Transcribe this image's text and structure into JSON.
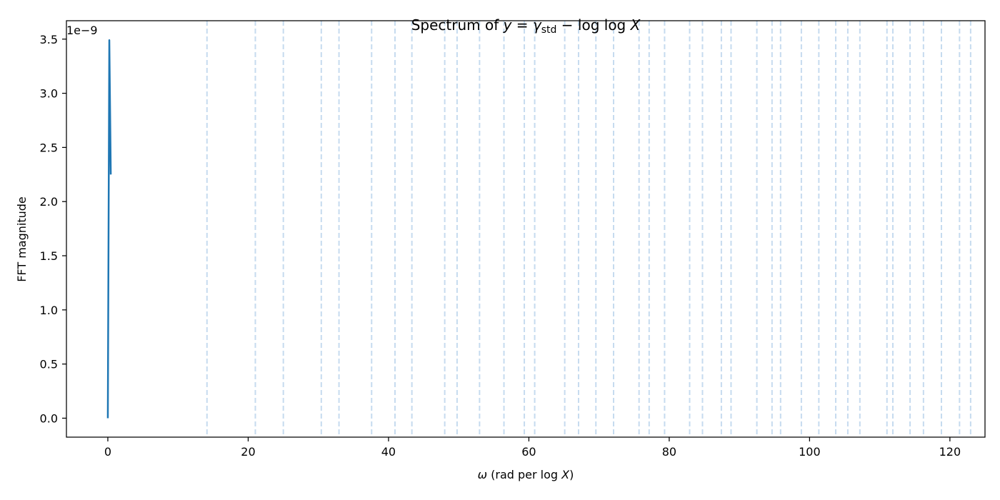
{
  "chart_data": {
    "type": "line",
    "title": "Spectrum of y = γ_std − log log X",
    "title_parts": {
      "prefix": "Spectrum of ",
      "y": "y",
      "eq": " = ",
      "gamma": "γ",
      "sub": "std",
      "minus": " − log log ",
      "X": "X"
    },
    "xlabel": "ω (rad per log X)",
    "xlabel_parts": {
      "omega": "ω",
      "mid": " (rad per log ",
      "X": "X",
      "end": ")"
    },
    "ylabel": "FFT magnitude",
    "y_offset_label": "1e−9",
    "xlim": [
      -5.9,
      125.0
    ],
    "ylim": [
      -0.175,
      3.67
    ],
    "x_ticks": [
      0,
      20,
      40,
      60,
      80,
      100,
      120
    ],
    "x_tick_labels": [
      "0",
      "20",
      "40",
      "60",
      "80",
      "100",
      "120"
    ],
    "y_ticks": [
      0.0,
      0.5,
      1.0,
      1.5,
      2.0,
      2.5,
      3.0,
      3.5
    ],
    "y_tick_labels": [
      "0.0",
      "0.5",
      "1.0",
      "1.5",
      "2.0",
      "2.5",
      "3.0",
      "3.5"
    ],
    "grid": false,
    "series": [
      {
        "x": [
          0.0,
          0.21,
          0.42
        ],
        "y": [
          0.0,
          3.49,
          2.25
        ],
        "color": "#1f77b4"
      }
    ],
    "reference_lines": {
      "style": "dashed",
      "color": "#c6dbef",
      "x": [
        14.13,
        21.02,
        25.01,
        30.42,
        32.94,
        37.59,
        40.92,
        43.33,
        48.01,
        49.77,
        52.97,
        56.45,
        59.35,
        60.83,
        65.11,
        67.08,
        69.55,
        72.07,
        75.7,
        77.14,
        79.34,
        82.91,
        84.74,
        87.43,
        88.81,
        92.49,
        94.65,
        95.87,
        98.83,
        101.32,
        103.73,
        105.45,
        107.17,
        111.03,
        111.87,
        114.32,
        116.23,
        118.79,
        121.37,
        122.95
      ]
    }
  }
}
